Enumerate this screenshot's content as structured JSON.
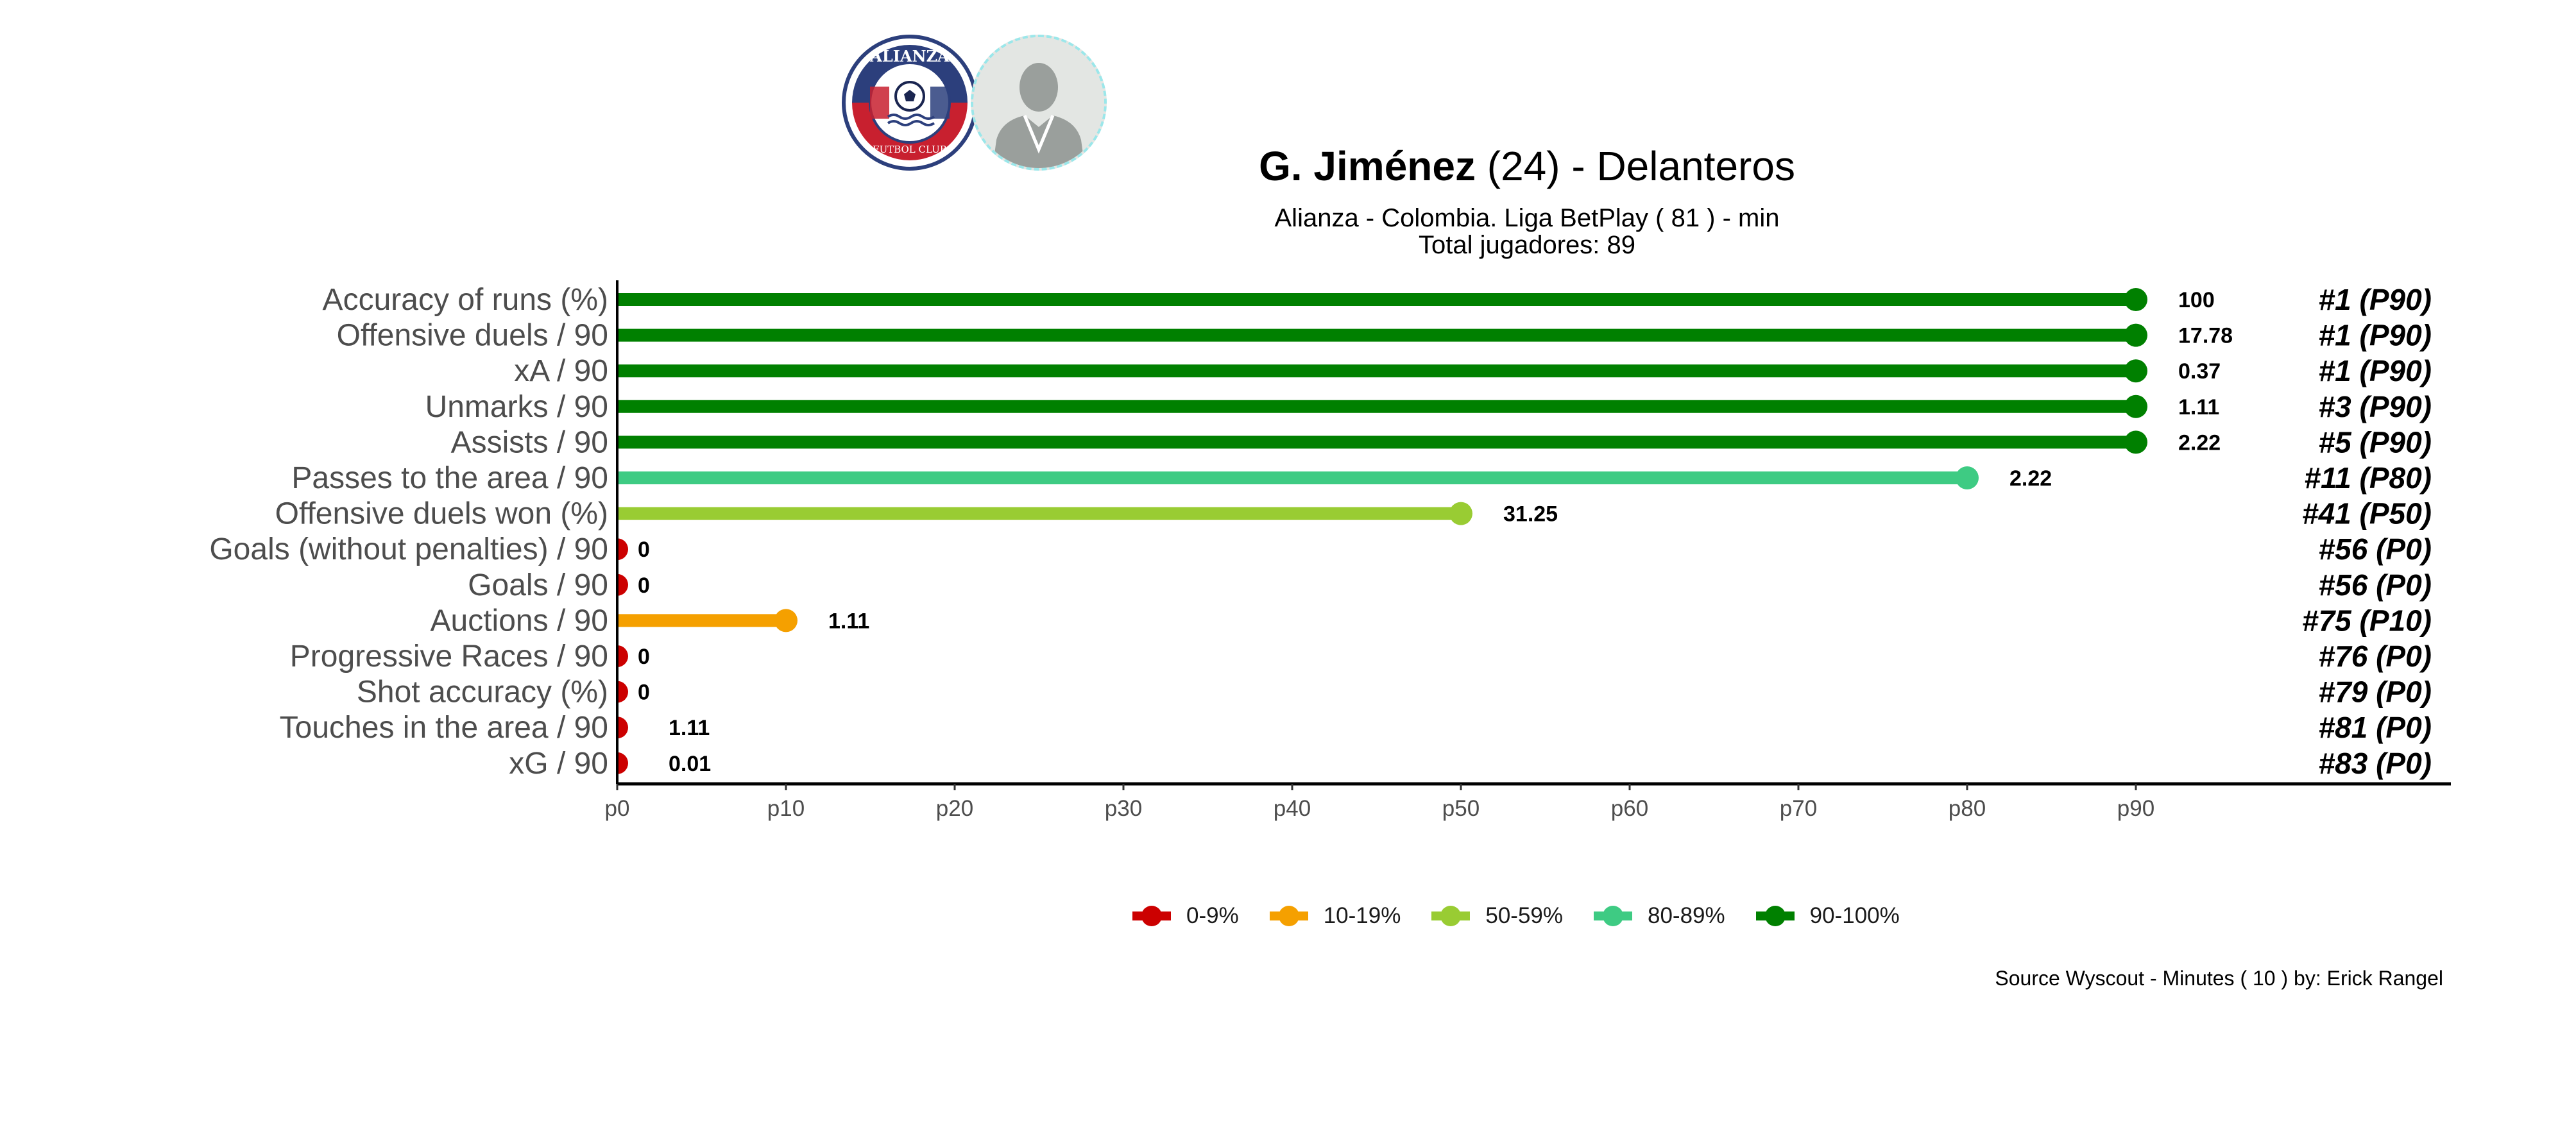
{
  "header": {
    "player_name": "G. Jiménez",
    "player_age": "(24)",
    "position": "Delanteros",
    "subtitle": "Alianza  -  Colombia. Liga BetPlay  ( 81 ) - min",
    "total_players": "Total jugadores:  89",
    "club_logo_text_top": "ALIANZA",
    "club_logo_text_bottom": "FUTBOL CLUB"
  },
  "source": "Source Wyscout - Minutes ( 10 ) by: Erick Rangel",
  "chart_data": {
    "type": "lollipop",
    "x_axis": {
      "ticks": [
        "p0",
        "p10",
        "p20",
        "p30",
        "p40",
        "p50",
        "p60",
        "p70",
        "p80",
        "p90"
      ],
      "tick_values": [
        0,
        10,
        20,
        30,
        40,
        50,
        60,
        70,
        80,
        90
      ],
      "xlim": [
        0,
        90
      ]
    },
    "rows": [
      {
        "metric": "Accuracy of runs (%)",
        "percentile": 90,
        "value_label": "100",
        "rank_label": "#1 (P90)",
        "color": "#008000"
      },
      {
        "metric": "Offensive duels / 90",
        "percentile": 90,
        "value_label": "17.78",
        "rank_label": "#1 (P90)",
        "color": "#008000"
      },
      {
        "metric": "xA / 90",
        "percentile": 90,
        "value_label": "0.37",
        "rank_label": "#1 (P90)",
        "color": "#008000"
      },
      {
        "metric": "Unmarks / 90",
        "percentile": 90,
        "value_label": "1.11",
        "rank_label": "#3 (P90)",
        "color": "#008000"
      },
      {
        "metric": "Assists / 90",
        "percentile": 90,
        "value_label": "2.22",
        "rank_label": "#5 (P90)",
        "color": "#008000"
      },
      {
        "metric": "Passes to the area / 90",
        "percentile": 80,
        "value_label": "2.22",
        "rank_label": "#11 (P80)",
        "color": "#3ecb83"
      },
      {
        "metric": "Offensive duels won (%)",
        "percentile": 50,
        "value_label": "31.25",
        "rank_label": "#41 (P50)",
        "color": "#99cc33"
      },
      {
        "metric": "Goals (without penalties) / 90",
        "percentile": 0,
        "value_label": "0",
        "rank_label": "#56 (P0)",
        "color": "#cc0000"
      },
      {
        "metric": "Goals / 90",
        "percentile": 0,
        "value_label": "0",
        "rank_label": "#56 (P0)",
        "color": "#cc0000"
      },
      {
        "metric": "Auctions / 90",
        "percentile": 10,
        "value_label": "1.11",
        "rank_label": "#75 (P10)",
        "color": "#f5a000"
      },
      {
        "metric": "Progressive Races / 90",
        "percentile": 0,
        "value_label": "0",
        "rank_label": "#76 (P0)",
        "color": "#cc0000"
      },
      {
        "metric": "Shot accuracy (%)",
        "percentile": 0,
        "value_label": "0",
        "rank_label": "#79 (P0)",
        "color": "#cc0000"
      },
      {
        "metric": "Touches in the area / 90",
        "percentile": 0,
        "value_label": "1.11",
        "rank_label": "#81 (P0)",
        "color": "#cc0000"
      },
      {
        "metric": "xG / 90",
        "percentile": 0,
        "value_label": "0.01",
        "rank_label": "#83 (P0)",
        "color": "#cc0000"
      }
    ],
    "legend": [
      {
        "label": "0-9%",
        "color": "#cc0000"
      },
      {
        "label": "10-19%",
        "color": "#f5a000"
      },
      {
        "label": "50-59%",
        "color": "#99cc33"
      },
      {
        "label": "80-89%",
        "color": "#3ecb83"
      },
      {
        "label": "90-100%",
        "color": "#008000"
      }
    ],
    "legend_position": "bottom"
  }
}
